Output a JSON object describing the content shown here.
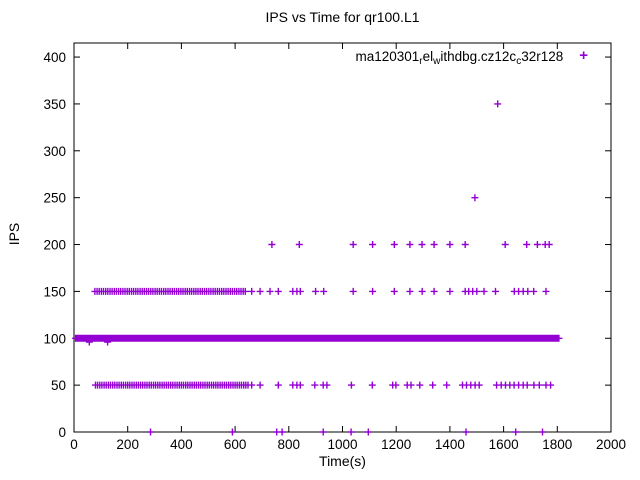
{
  "title": "IPS vs Time for qr100.L1",
  "legend": {
    "parts": [
      {
        "text": "ma120301",
        "sub": false
      },
      {
        "text": "r",
        "sub": true
      },
      {
        "text": "el",
        "sub": false
      },
      {
        "text": "w",
        "sub": true
      },
      {
        "text": "ithdbg.cz12c",
        "sub": false
      },
      {
        "text": "c",
        "sub": true
      },
      {
        "text": "32r128",
        "sub": false
      }
    ],
    "marker_glyph": "+"
  },
  "chart_data": {
    "type": "scatter",
    "title": "IPS vs Time for qr100.L1",
    "xlabel": "Time(s)",
    "ylabel": "IPS",
    "xlim": [
      0,
      2000
    ],
    "ylim": [
      0,
      415
    ],
    "xticks": [
      0,
      200,
      400,
      600,
      800,
      1000,
      1200,
      1400,
      1600,
      1800,
      2000
    ],
    "yticks": [
      0,
      50,
      100,
      150,
      200,
      250,
      300,
      350,
      400
    ],
    "grid": false,
    "legend_position": "top-right-inside",
    "marker": {
      "shape": "plus",
      "color": "#9400d3",
      "size": 7
    },
    "series": [
      {
        "ips": 0,
        "times": [
          285,
          590,
          755,
          775,
          928,
          1032,
          1096,
          1460,
          1645,
          1745
        ],
        "dense_ranges": []
      },
      {
        "ips": 50,
        "times": [
          662,
          693,
          761,
          815,
          830,
          843,
          897,
          928,
          942,
          1033,
          1111,
          1187,
          1199,
          1241,
          1255,
          1288,
          1336,
          1388,
          1447,
          1462,
          1478,
          1494,
          1509,
          1574,
          1591,
          1607,
          1623,
          1639,
          1656,
          1673,
          1688,
          1713,
          1733,
          1758,
          1775
        ],
        "dense_ranges": [
          [
            80,
            650,
            8
          ]
        ]
      },
      {
        "ips": 96,
        "times": [
          57,
          125
        ],
        "dense_ranges": []
      },
      {
        "ips": 100,
        "times": [],
        "dense_ranges": [
          [
            6,
            1808,
            3
          ]
        ]
      },
      {
        "ips": 150,
        "times": [
          662,
          693,
          730,
          761,
          815,
          830,
          843,
          900,
          930,
          1040,
          1112,
          1193,
          1251,
          1297,
          1341,
          1400,
          1457,
          1470,
          1485,
          1500,
          1527,
          1570,
          1640,
          1656,
          1673,
          1690,
          1712,
          1758
        ],
        "dense_ranges": [
          [
            78,
            645,
            8
          ]
        ]
      },
      {
        "ips": 200,
        "times": [
          737,
          839,
          1040,
          1112,
          1193,
          1251,
          1296,
          1341,
          1400,
          1457,
          1606,
          1686,
          1726,
          1755,
          1770
        ],
        "dense_ranges": []
      },
      {
        "ips": 250,
        "times": [
          1493
        ],
        "dense_ranges": []
      },
      {
        "ips": 350,
        "times": [
          1578
        ],
        "dense_ranges": []
      }
    ]
  },
  "colors": {
    "marker": "#9400d3",
    "axis": "#000000",
    "background": "#ffffff"
  }
}
